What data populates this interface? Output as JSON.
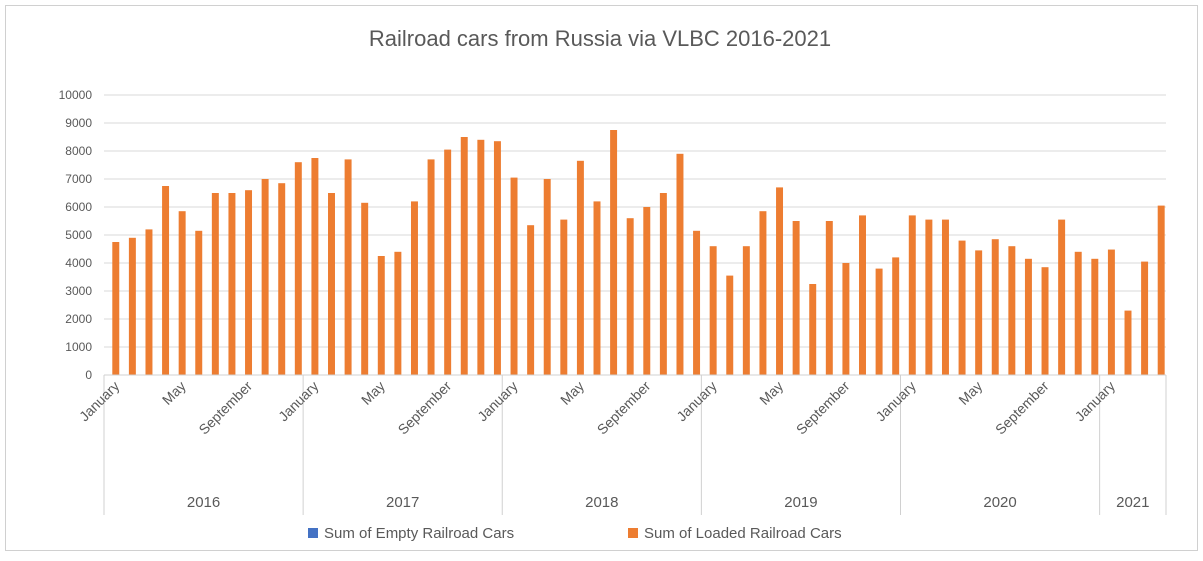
{
  "chart_data": {
    "type": "bar",
    "title": "Railroad cars from Russia via VLBC 2016-2021",
    "category_groups": [
      {
        "label": "2016",
        "categories": [
          "January",
          null,
          null,
          null,
          "May",
          null,
          null,
          null,
          "September",
          null,
          null,
          null
        ]
      },
      {
        "label": "2017",
        "categories": [
          "January",
          null,
          null,
          null,
          "May",
          null,
          null,
          null,
          "September",
          null,
          null,
          null
        ]
      },
      {
        "label": "2018",
        "categories": [
          "January",
          null,
          null,
          null,
          "May",
          null,
          null,
          null,
          "September",
          null,
          null,
          null
        ]
      },
      {
        "label": "2019",
        "categories": [
          "January",
          null,
          null,
          null,
          "May",
          null,
          null,
          null,
          "September",
          null,
          null,
          null
        ]
      },
      {
        "label": "2020",
        "categories": [
          "January",
          null,
          null,
          null,
          "May",
          null,
          null,
          null,
          "September",
          null,
          null,
          null
        ]
      },
      {
        "label": "2021",
        "categories": [
          "January",
          null,
          null,
          null
        ]
      }
    ],
    "series": [
      {
        "name": "Sum of Empty Railroad Cars",
        "color": "#4472c4",
        "values": [
          0,
          0,
          0,
          0,
          0,
          0,
          0,
          0,
          0,
          0,
          0,
          0,
          0,
          0,
          0,
          0,
          0,
          0,
          0,
          0,
          0,
          0,
          0,
          0,
          0,
          0,
          0,
          0,
          0,
          0,
          0,
          0,
          0,
          0,
          0,
          0,
          0,
          0,
          0,
          0,
          0,
          0,
          0,
          0,
          0,
          0,
          0,
          0,
          0,
          0,
          0,
          0,
          0,
          0,
          0,
          0,
          0,
          0,
          0,
          0,
          0,
          0,
          0,
          0
        ]
      },
      {
        "name": "Sum of Loaded Railroad Cars",
        "color": "#ed7d31",
        "values": [
          4750,
          4900,
          5200,
          6750,
          5850,
          5150,
          6500,
          6500,
          6600,
          7000,
          6850,
          7600,
          7750,
          6500,
          7700,
          6150,
          4250,
          4400,
          6200,
          7700,
          8050,
          8500,
          8400,
          8350,
          7050,
          5350,
          7000,
          5550,
          7650,
          6200,
          8750,
          5600,
          6000,
          6500,
          7900,
          5150,
          4600,
          3550,
          4600,
          5850,
          6700,
          5500,
          3250,
          5500,
          4000,
          5700,
          3800,
          4200,
          5700,
          5550,
          5550,
          4800,
          4450,
          4850,
          4600,
          4150,
          3850,
          5550,
          4400,
          4150,
          4480,
          2300,
          4050,
          6050
        ]
      }
    ],
    "ylim": [
      0,
      10000
    ],
    "yticks": [
      0,
      1000,
      2000,
      3000,
      4000,
      5000,
      6000,
      7000,
      8000,
      9000,
      10000
    ],
    "grid": true,
    "legend": "bottom"
  }
}
